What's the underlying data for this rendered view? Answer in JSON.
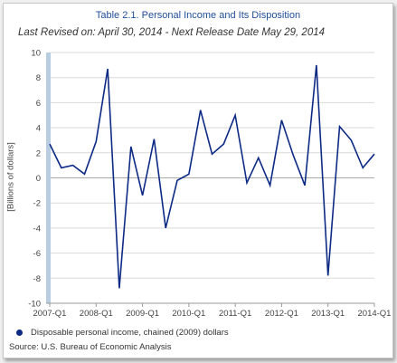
{
  "chart_data": {
    "type": "line",
    "title": "Table 2.1. Personal Income and Its Disposition",
    "subtitle": "Last Revised on: April 30, 2014 - Next Release Date May 29, 2014",
    "ylabel": "[Billions of dollars]",
    "xlabel": "",
    "ylim": [
      -10,
      10
    ],
    "yticks": [
      -10,
      -8,
      -6,
      -4,
      -2,
      0,
      2,
      4,
      6,
      8,
      10
    ],
    "xtick_labels": [
      "2007-Q1",
      "2008-Q1",
      "2009-Q1",
      "2010-Q1",
      "2011-Q1",
      "2012-Q1",
      "2013-Q1",
      "2014-Q1"
    ],
    "grid": "horizontal",
    "legend_position": "bottom",
    "colors": {
      "line": "#0d2a85",
      "axis_band": "#b8cde0",
      "grid": "#d9d9d9"
    },
    "x": [
      "2007-Q1",
      "2007-Q2",
      "2007-Q3",
      "2007-Q4",
      "2008-Q1",
      "2008-Q2",
      "2008-Q3",
      "2008-Q4",
      "2009-Q1",
      "2009-Q2",
      "2009-Q3",
      "2009-Q4",
      "2010-Q1",
      "2010-Q2",
      "2010-Q3",
      "2010-Q4",
      "2011-Q1",
      "2011-Q2",
      "2011-Q3",
      "2011-Q4",
      "2012-Q1",
      "2012-Q2",
      "2012-Q3",
      "2012-Q4",
      "2013-Q1",
      "2013-Q2",
      "2013-Q3",
      "2013-Q4",
      "2014-Q1"
    ],
    "series": [
      {
        "name": "Disposable personal income, chained (2009) dollars",
        "values": [
          2.7,
          0.8,
          1.0,
          0.3,
          2.9,
          8.7,
          -8.8,
          2.5,
          -1.4,
          3.1,
          -4.0,
          -0.2,
          0.3,
          5.4,
          1.9,
          2.7,
          5.0,
          -0.4,
          1.6,
          -0.6,
          4.6,
          1.8,
          -0.6,
          9.0,
          -7.8,
          4.1,
          3.0,
          0.8,
          1.9
        ]
      }
    ]
  },
  "source": "Source: U.S. Bureau of Economic Analysis"
}
